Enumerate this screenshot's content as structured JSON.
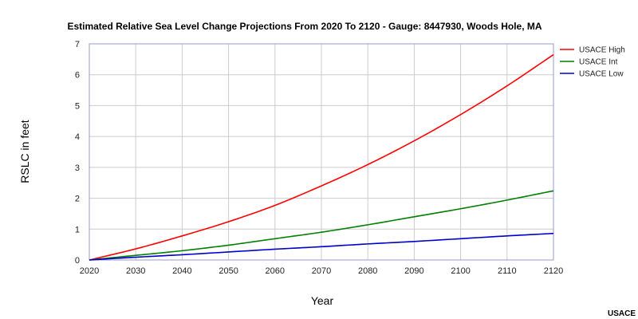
{
  "chart_data": {
    "type": "line",
    "title": "Estimated Relative Sea Level Change Projections From 2020 To 2120 - Gauge: 8447930, Woods Hole, MA",
    "xlabel": "Year",
    "ylabel": "RSLC in feet",
    "xlim": [
      2020,
      2120
    ],
    "ylim": [
      0,
      7
    ],
    "xticks": [
      2020,
      2030,
      2040,
      2050,
      2060,
      2070,
      2080,
      2090,
      2100,
      2110,
      2120
    ],
    "yticks": [
      0,
      1,
      2,
      3,
      4,
      5,
      6,
      7
    ],
    "grid": true,
    "legend_position": "top-right",
    "x": [
      2020,
      2030,
      2040,
      2050,
      2060,
      2070,
      2080,
      2090,
      2100,
      2110,
      2120
    ],
    "series": [
      {
        "name": "USACE High",
        "color": "#ff0000",
        "values": [
          0,
          0.36,
          0.78,
          1.24,
          1.77,
          2.4,
          3.09,
          3.86,
          4.71,
          5.64,
          6.65
        ]
      },
      {
        "name": "USACE Int",
        "color": "#008000",
        "values": [
          0,
          0.15,
          0.3,
          0.48,
          0.69,
          0.9,
          1.14,
          1.4,
          1.66,
          1.94,
          2.24
        ]
      },
      {
        "name": "USACE Low",
        "color": "#0000cc",
        "values": [
          0,
          0.09,
          0.17,
          0.26,
          0.35,
          0.43,
          0.52,
          0.6,
          0.69,
          0.78,
          0.86
        ]
      }
    ]
  },
  "credit": "USACE",
  "colors": {
    "frame": "#9999cc",
    "grid": "#cccccc"
  }
}
